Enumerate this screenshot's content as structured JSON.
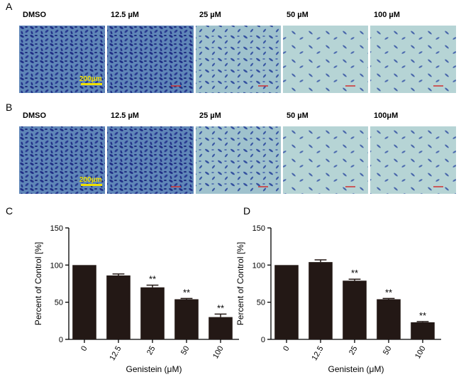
{
  "panels": [
    {
      "letter": "A",
      "labels": [
        "DMSO",
        "12.5 µM",
        "25 µM",
        "50 µM",
        "100 µM"
      ],
      "scale": "200μm"
    },
    {
      "letter": "B",
      "labels": [
        "DMSO",
        "12.5 µM",
        "25 µM",
        "50 µM",
        "100μM"
      ],
      "scale": "200μm"
    }
  ],
  "chart_data": [
    {
      "type": "bar",
      "letter": "C",
      "categories": [
        "0",
        "12.5",
        "25",
        "50",
        "100"
      ],
      "values": [
        100,
        86,
        70,
        54,
        30
      ],
      "errors": [
        0,
        2,
        3,
        1,
        4
      ],
      "annotations": [
        null,
        null,
        "**",
        "**",
        "**"
      ],
      "x_label": "Genistein (μM)",
      "y_label": "Percent of Control [%]",
      "ylim": [
        0,
        150
      ],
      "yticks": [
        0,
        50,
        100,
        150
      ],
      "color": "#231815"
    },
    {
      "type": "bar",
      "letter": "D",
      "categories": [
        "0",
        "12.5",
        "25",
        "50",
        "100"
      ],
      "values": [
        100,
        104,
        79,
        54,
        23
      ],
      "errors": [
        0,
        3,
        2,
        1,
        1
      ],
      "annotations": [
        null,
        null,
        "**",
        "**",
        "**"
      ],
      "x_label": "Genistein (μM)",
      "y_label": "Percent of Control [%]",
      "ylim": [
        0,
        150
      ],
      "yticks": [
        0,
        50,
        100,
        150
      ],
      "color": "#231815"
    }
  ]
}
